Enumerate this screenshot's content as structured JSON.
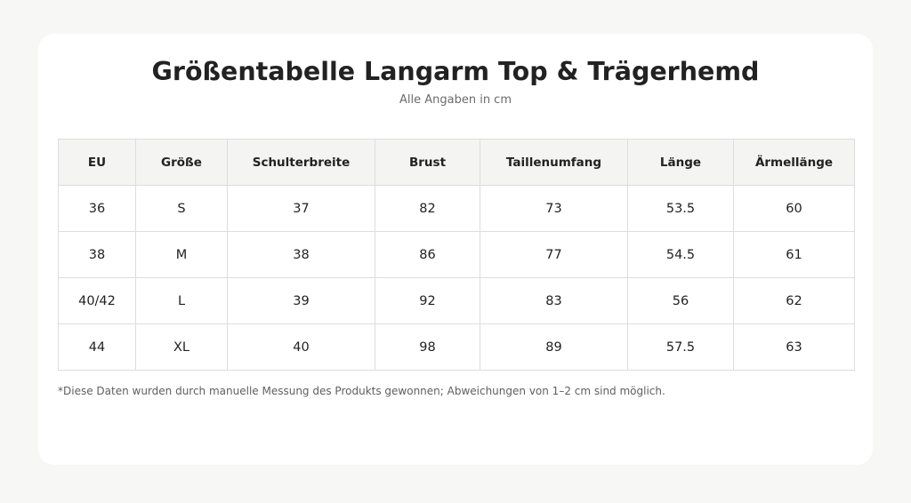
{
  "header": {
    "title": "Größentabelle Langarm Top & Trägerhemd",
    "subtitle": "Alle Angaben in cm"
  },
  "table": {
    "columns": [
      "EU",
      "Größe",
      "Schulterbreite",
      "Brust",
      "Taillenumfang",
      "Länge",
      "Ärmellänge"
    ],
    "rows": [
      [
        "36",
        "S",
        "37",
        "82",
        "73",
        "53.5",
        "60"
      ],
      [
        "38",
        "M",
        "38",
        "86",
        "77",
        "54.5",
        "61"
      ],
      [
        "40/42",
        "L",
        "39",
        "92",
        "83",
        "56",
        "62"
      ],
      [
        "44",
        "XL",
        "40",
        "98",
        "89",
        "57.5",
        "63"
      ]
    ]
  },
  "footnote": "*Diese Daten wurden durch manuelle Messung des Produkts gewonnen; Abweichungen von 1–2 cm sind möglich."
}
